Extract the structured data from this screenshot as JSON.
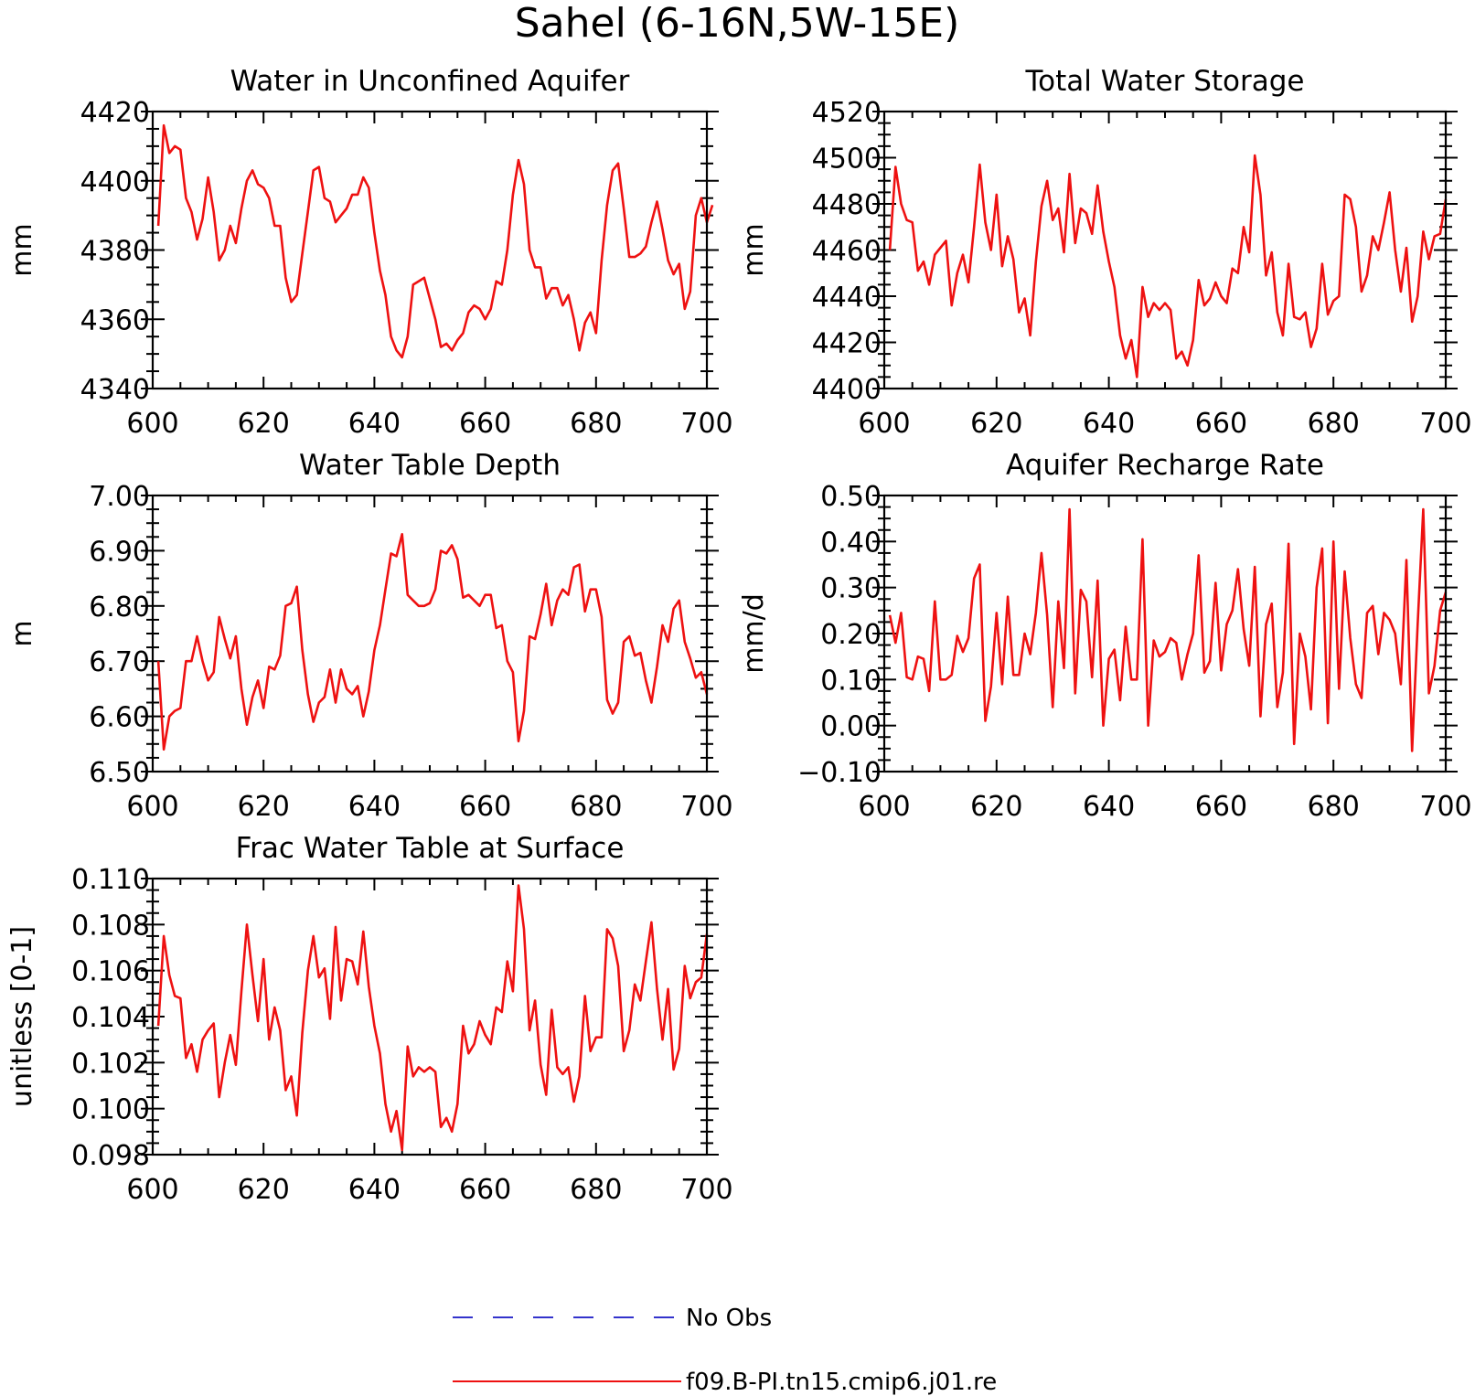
{
  "figure_title": "Sahel (6-16N,5W-15E)",
  "legend": [
    {
      "label": "No Obs",
      "color": "#3333cc",
      "dash": true
    },
    {
      "label": "f09.B-PI.tn15.cmip6.j01.re",
      "color": "#ee1111",
      "dash": false
    }
  ],
  "chart_data": [
    {
      "type": "line",
      "title": "Water in Unconfined Aquifer",
      "ylabel": "mm",
      "xlim": [
        600,
        700
      ],
      "ylim": [
        4340,
        4420
      ],
      "xticks": [
        600,
        620,
        640,
        660,
        680,
        700
      ],
      "yticks": [
        4340,
        4360,
        4380,
        4400,
        4420
      ],
      "tick_decimals": 0,
      "x_start": 601,
      "series": [
        {
          "name": "f09.B-PI.tn15.cmip6.j01.re",
          "color": "#ee1111",
          "values": [
            4387,
            4416,
            4408,
            4410,
            4409,
            4395,
            4391,
            4383,
            4389,
            4401,
            4391,
            4377,
            4380,
            4387,
            4382,
            4392,
            4400,
            4403,
            4399,
            4398,
            4395,
            4387,
            4387,
            4372,
            4365,
            4367,
            4379,
            4391,
            4403,
            4404,
            4395,
            4394,
            4388,
            4390,
            4392,
            4396,
            4396,
            4401,
            4398,
            4385,
            4374,
            4367,
            4355,
            4351,
            4349,
            4355,
            4370,
            4371,
            4372,
            4366,
            4360,
            4352,
            4353,
            4351,
            4354,
            4356,
            4362,
            4364,
            4363,
            4360,
            4363,
            4371,
            4370,
            4380,
            4396,
            4406,
            4399,
            4380,
            4375,
            4375,
            4366,
            4369,
            4369,
            4364,
            4367,
            4360,
            4351,
            4359,
            4362,
            4356,
            4377,
            4393,
            4403,
            4405,
            4392,
            4378,
            4378,
            4379,
            4381,
            4388,
            4394,
            4386,
            4377,
            4373,
            4376,
            4363,
            4368,
            4390,
            4395,
            4388,
            4393
          ]
        }
      ]
    },
    {
      "type": "line",
      "title": "Total Water Storage",
      "ylabel": "mm",
      "xlim": [
        600,
        700
      ],
      "ylim": [
        4400,
        4520
      ],
      "xticks": [
        600,
        620,
        640,
        660,
        680,
        700
      ],
      "yticks": [
        4400,
        4420,
        4440,
        4460,
        4480,
        4500,
        4520
      ],
      "tick_decimals": 0,
      "x_start": 601,
      "series": [
        {
          "name": "f09.B-PI.tn15.cmip6.j01.re",
          "color": "#ee1111",
          "values": [
            4460,
            4496,
            4480,
            4473,
            4472,
            4451,
            4455,
            4445,
            4458,
            4461,
            4464,
            4436,
            4450,
            4458,
            4446,
            4470,
            4497,
            4472,
            4460,
            4484,
            4453,
            4466,
            4456,
            4433,
            4439,
            4423,
            4455,
            4479,
            4490,
            4473,
            4478,
            4459,
            4493,
            4463,
            4478,
            4476,
            4467,
            4488,
            4468,
            4455,
            4444,
            4423,
            4413,
            4421,
            4405,
            4444,
            4431,
            4437,
            4434,
            4437,
            4434,
            4413,
            4416,
            4410,
            4421,
            4447,
            4436,
            4439,
            4446,
            4440,
            4437,
            4452,
            4450,
            4470,
            4459,
            4501,
            4484,
            4449,
            4459,
            4433,
            4423,
            4454,
            4431,
            4430,
            4433,
            4418,
            4426,
            4454,
            4432,
            4438,
            4440,
            4484,
            4482,
            4470,
            4442,
            4449,
            4466,
            4460,
            4472,
            4485,
            4460,
            4442,
            4461,
            4429,
            4440,
            4468,
            4456,
            4466,
            4467,
            4482
          ]
        }
      ]
    },
    {
      "type": "line",
      "title": "Water Table Depth",
      "ylabel": "m",
      "xlim": [
        600,
        700
      ],
      "ylim": [
        6.5,
        7.0
      ],
      "xticks": [
        600,
        620,
        640,
        660,
        680,
        700
      ],
      "yticks": [
        6.5,
        6.6,
        6.7,
        6.8,
        6.9,
        7.0
      ],
      "tick_decimals": 2,
      "x_start": 601,
      "series": [
        {
          "name": "f09.B-PI.tn15.cmip6.j01.re",
          "color": "#ee1111",
          "values": [
            6.7,
            6.54,
            6.6,
            6.61,
            6.615,
            6.7,
            6.7,
            6.745,
            6.7,
            6.665,
            6.68,
            6.78,
            6.74,
            6.705,
            6.745,
            6.65,
            6.585,
            6.635,
            6.665,
            6.615,
            6.69,
            6.685,
            6.71,
            6.8,
            6.805,
            6.835,
            6.72,
            6.64,
            6.59,
            6.625,
            6.635,
            6.685,
            6.625,
            6.685,
            6.65,
            6.64,
            6.655,
            6.6,
            6.645,
            6.72,
            6.765,
            6.83,
            6.895,
            6.89,
            6.93,
            6.82,
            6.81,
            6.8,
            6.8,
            6.805,
            6.83,
            6.9,
            6.895,
            6.91,
            6.885,
            6.815,
            6.82,
            6.81,
            6.8,
            6.82,
            6.82,
            6.76,
            6.765,
            6.7,
            6.68,
            6.555,
            6.61,
            6.745,
            6.74,
            6.785,
            6.84,
            6.765,
            6.81,
            6.83,
            6.82,
            6.87,
            6.875,
            6.79,
            6.83,
            6.83,
            6.78,
            6.63,
            6.605,
            6.625,
            6.735,
            6.745,
            6.71,
            6.715,
            6.665,
            6.625,
            6.69,
            6.765,
            6.735,
            6.795,
            6.81,
            6.735,
            6.705,
            6.67,
            6.68,
            6.64
          ]
        }
      ]
    },
    {
      "type": "line",
      "title": "Aquifer Recharge Rate",
      "ylabel": "mm/d",
      "xlim": [
        600,
        700
      ],
      "ylim": [
        -0.1,
        0.5
      ],
      "xticks": [
        600,
        620,
        640,
        660,
        680,
        700
      ],
      "yticks": [
        -0.1,
        0.0,
        0.1,
        0.2,
        0.3,
        0.4,
        0.5
      ],
      "tick_decimals": 2,
      "x_start": 601,
      "series": [
        {
          "name": "f09.B-PI.tn15.cmip6.j01.re",
          "color": "#ee1111",
          "values": [
            0.24,
            0.18,
            0.245,
            0.105,
            0.1,
            0.15,
            0.145,
            0.075,
            0.27,
            0.1,
            0.1,
            0.11,
            0.195,
            0.16,
            0.19,
            0.32,
            0.35,
            0.01,
            0.085,
            0.245,
            0.09,
            0.28,
            0.11,
            0.11,
            0.2,
            0.155,
            0.245,
            0.375,
            0.24,
            0.04,
            0.27,
            0.125,
            0.47,
            0.07,
            0.295,
            0.27,
            0.105,
            0.315,
            0.0,
            0.145,
            0.165,
            0.055,
            0.215,
            0.1,
            0.1,
            0.405,
            0.0,
            0.185,
            0.15,
            0.16,
            0.19,
            0.18,
            0.1,
            0.155,
            0.2,
            0.37,
            0.115,
            0.14,
            0.31,
            0.12,
            0.22,
            0.25,
            0.34,
            0.21,
            0.13,
            0.345,
            0.02,
            0.22,
            0.265,
            0.04,
            0.115,
            0.395,
            -0.04,
            0.2,
            0.15,
            0.035,
            0.3,
            0.385,
            0.005,
            0.4,
            0.08,
            0.335,
            0.19,
            0.09,
            0.06,
            0.245,
            0.26,
            0.155,
            0.245,
            0.23,
            0.2,
            0.09,
            0.36,
            -0.055,
            0.22,
            0.47,
            0.07,
            0.13,
            0.25,
            0.29
          ]
        }
      ]
    },
    {
      "type": "line",
      "title": "Frac Water Table at Surface",
      "ylabel": "unitless [0-1]",
      "xlim": [
        600,
        700
      ],
      "ylim": [
        0.098,
        0.11
      ],
      "xticks": [
        600,
        620,
        640,
        660,
        680,
        700
      ],
      "yticks": [
        0.098,
        0.1,
        0.102,
        0.104,
        0.106,
        0.108,
        0.11
      ],
      "tick_decimals": 3,
      "x_start": 601,
      "series": [
        {
          "name": "f09.B-PI.tn15.cmip6.j01.re",
          "color": "#ee1111",
          "values": [
            0.1036,
            0.1075,
            0.1058,
            0.1049,
            0.1048,
            0.1022,
            0.1028,
            0.1016,
            0.103,
            0.1034,
            0.1037,
            0.1005,
            0.102,
            0.1032,
            0.1019,
            0.1051,
            0.108,
            0.1058,
            0.1038,
            0.1065,
            0.103,
            0.1044,
            0.1034,
            0.1008,
            0.1014,
            0.0997,
            0.1033,
            0.106,
            0.1075,
            0.1057,
            0.1061,
            0.1039,
            0.1079,
            0.1047,
            0.1065,
            0.1064,
            0.1054,
            0.1077,
            0.1053,
            0.1036,
            0.1024,
            0.1002,
            0.099,
            0.0999,
            0.0982,
            0.1027,
            0.1014,
            0.1018,
            0.1016,
            0.1018,
            0.1016,
            0.0992,
            0.0996,
            0.099,
            0.1002,
            0.1036,
            0.1024,
            0.1028,
            0.1038,
            0.1032,
            0.1028,
            0.1044,
            0.1042,
            0.1064,
            0.1051,
            0.1097,
            0.1078,
            0.1034,
            0.1047,
            0.1019,
            0.1006,
            0.1043,
            0.1018,
            0.1015,
            0.1018,
            0.1003,
            0.1014,
            0.1049,
            0.1025,
            0.1031,
            0.1031,
            0.1078,
            0.1074,
            0.1062,
            0.1025,
            0.1034,
            0.1054,
            0.1047,
            0.1064,
            0.1081,
            0.1052,
            0.103,
            0.1052,
            0.1017,
            0.1026,
            0.1062,
            0.1048,
            0.1055,
            0.1057,
            0.1076
          ]
        }
      ]
    }
  ]
}
